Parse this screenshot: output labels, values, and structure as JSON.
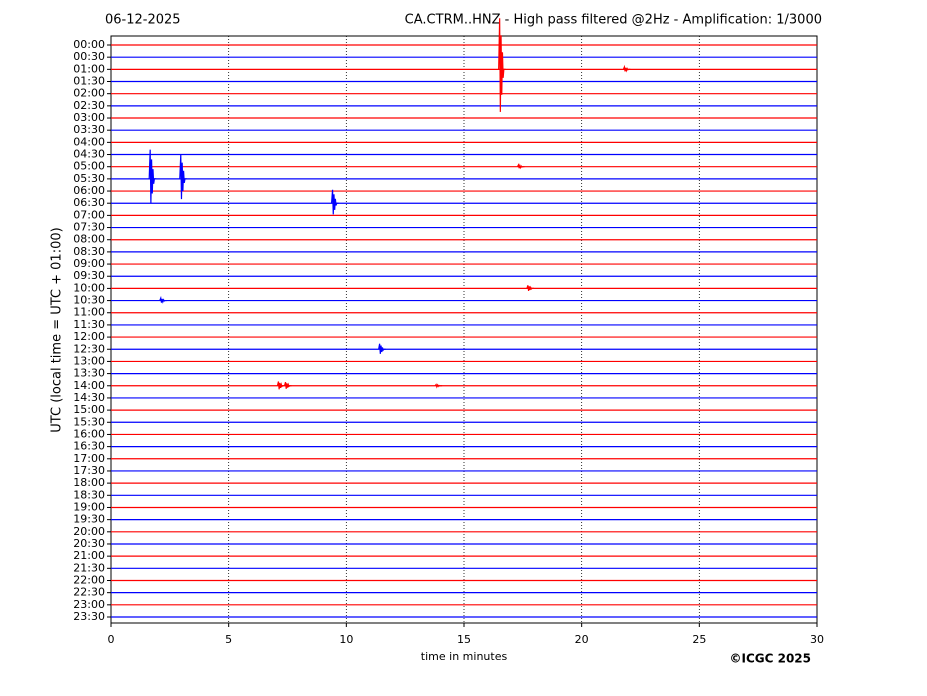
{
  "chart_data": {
    "type": "helicorder",
    "title_left": "06-12-2025",
    "title": "CA.CTRM..HNZ - High pass filtered @2Hz - Amplification: 1/3000",
    "x_label": "time in minutes",
    "y_label": "UTC (local time = UTC + 01:00)",
    "credit": "©ICGC 2025",
    "categories": [
      "00:00",
      "00:30",
      "01:00",
      "01:30",
      "02:00",
      "02:30",
      "03:00",
      "03:30",
      "04:00",
      "04:30",
      "05:00",
      "05:30",
      "06:00",
      "06:30",
      "07:00",
      "07:30",
      "08:00",
      "08:30",
      "09:00",
      "09:30",
      "10:00",
      "10:30",
      "11:00",
      "11:30",
      "12:00",
      "12:30",
      "13:00",
      "13:30",
      "14:00",
      "14:30",
      "15:00",
      "15:30",
      "16:00",
      "16:30",
      "17:00",
      "17:30",
      "18:00",
      "18:30",
      "19:00",
      "19:30",
      "20:00",
      "20:30",
      "21:00",
      "21:30",
      "22:00",
      "22:30",
      "23:00",
      "23:30"
    ],
    "trace_colors": [
      "#ff0000",
      "#0000ff"
    ],
    "xlim": [
      0,
      30
    ],
    "xticks": [
      0,
      5,
      10,
      15,
      20,
      25,
      30
    ],
    "grid": true,
    "events": [
      {
        "trace": "01:00",
        "x": 16.6,
        "amplitude": 4.2
      },
      {
        "trace": "01:00",
        "x": 21.9,
        "amplitude": 0.2
      },
      {
        "trace": "05:00",
        "x": 17.4,
        "amplitude": 0.15
      },
      {
        "trace": "05:30",
        "x": 1.75,
        "amplitude": 2.4
      },
      {
        "trace": "05:30",
        "x": 3.05,
        "amplitude": 2.0
      },
      {
        "trace": "06:30",
        "x": 9.5,
        "amplitude": 1.1
      },
      {
        "trace": "10:00",
        "x": 17.8,
        "amplitude": 0.25
      },
      {
        "trace": "10:30",
        "x": 2.2,
        "amplitude": 0.2
      },
      {
        "trace": "12:30",
        "x": 11.5,
        "amplitude": 0.45
      },
      {
        "trace": "14:00",
        "x": 7.2,
        "amplitude": 0.35
      },
      {
        "trace": "14:00",
        "x": 7.5,
        "amplitude": 0.3
      },
      {
        "trace": "14:00",
        "x": 13.9,
        "amplitude": 0.1
      }
    ]
  }
}
